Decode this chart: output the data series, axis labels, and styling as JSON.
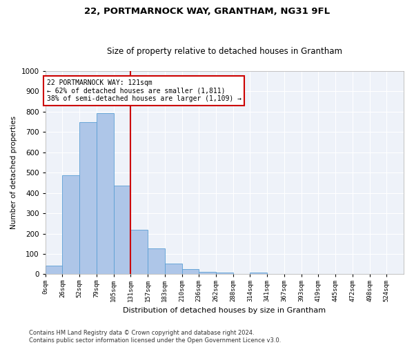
{
  "title": "22, PORTMARNOCK WAY, GRANTHAM, NG31 9FL",
  "subtitle": "Size of property relative to detached houses in Grantham",
  "xlabel": "Distribution of detached houses by size in Grantham",
  "ylabel": "Number of detached properties",
  "bar_labels": [
    "0sqm",
    "26sqm",
    "52sqm",
    "79sqm",
    "105sqm",
    "131sqm",
    "157sqm",
    "183sqm",
    "210sqm",
    "236sqm",
    "262sqm",
    "288sqm",
    "314sqm",
    "341sqm",
    "367sqm",
    "393sqm",
    "419sqm",
    "445sqm",
    "472sqm",
    "498sqm",
    "524sqm"
  ],
  "bar_values": [
    42,
    487,
    748,
    792,
    435,
    220,
    127,
    52,
    27,
    12,
    10,
    0,
    9,
    0,
    0,
    0,
    0,
    0,
    0,
    0,
    0
  ],
  "bar_color": "#aec6e8",
  "bar_edge_color": "#5a9fd4",
  "property_size": 121,
  "vline_color": "#cc0000",
  "annotation_text": "22 PORTMARNOCK WAY: 121sqm\n← 62% of detached houses are smaller (1,811)\n38% of semi-detached houses are larger (1,109) →",
  "annotation_box_color": "#ffffff",
  "annotation_box_edge_color": "#cc0000",
  "ylim": [
    0,
    1000
  ],
  "background_color": "#eef2f9",
  "grid_color": "#ffffff",
  "footnote": "Contains HM Land Registry data © Crown copyright and database right 2024.\nContains public sector information licensed under the Open Government Licence v3.0.",
  "bin_width": 26
}
